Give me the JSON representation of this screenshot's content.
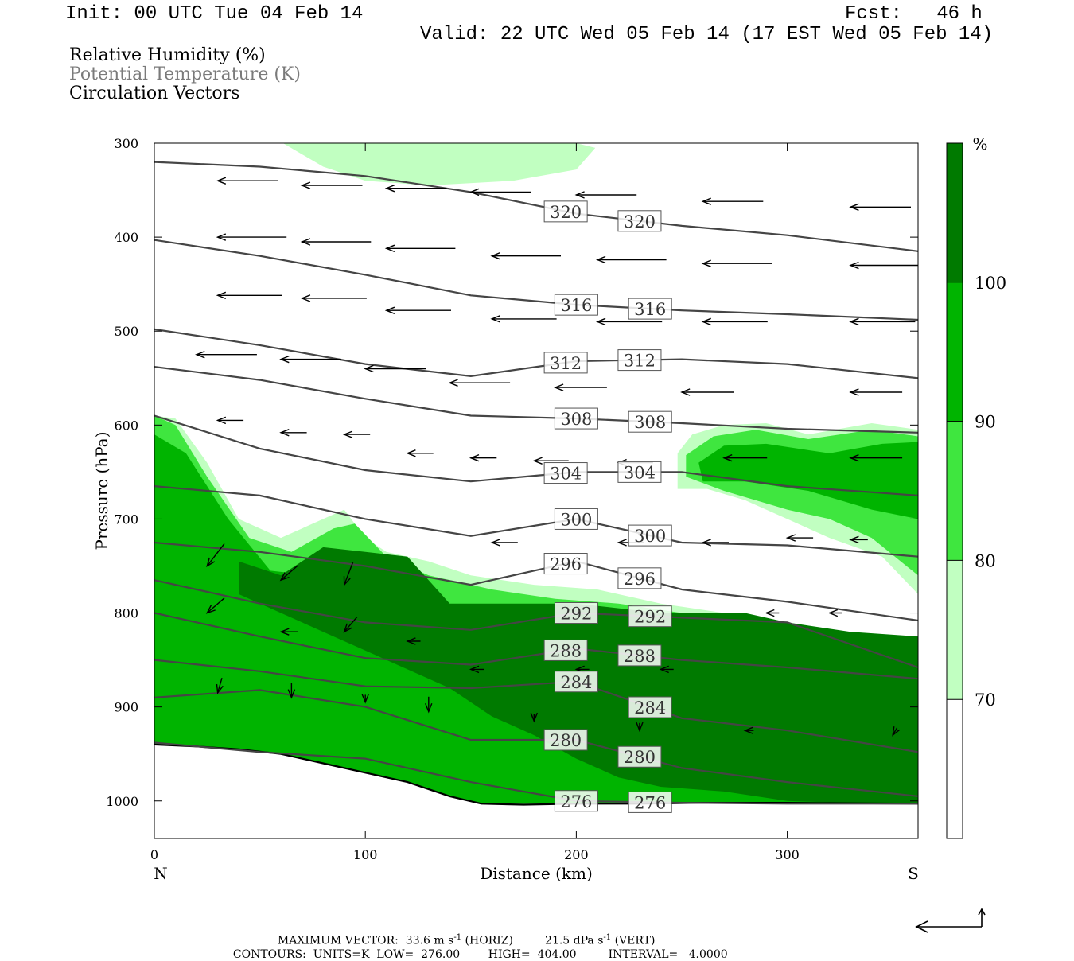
{
  "header": {
    "init": "Init: 00 UTC Tue 04 Feb 14",
    "fcst": "Fcst:   46 h",
    "valid": "Valid: 22 UTC Wed 05 Feb 14 (17 EST Wed 05 Feb 14)"
  },
  "legend": {
    "items": [
      "Relative Humidity (%)",
      "Potential Temperature (K)",
      "Circulation Vectors"
    ]
  },
  "colors": {
    "rh_70_80": "#c1ffc1",
    "rh_80_90": "#3fe63f",
    "rh_90_100": "#00b400",
    "rh_100": "#007a00",
    "theta_line": "#454545",
    "legend_secondary": "#7a7a7a"
  },
  "chart_data": {
    "type": "cross-section",
    "xlabel": "Distance (km)",
    "ylabel": "Pressure (hPa)",
    "xlim": [
      0,
      362
    ],
    "ylim": [
      1040,
      300
    ],
    "y_log_scale": false,
    "x_ticks": [
      0,
      100,
      200,
      300
    ],
    "y_ticks": [
      300,
      400,
      500,
      600,
      700,
      800,
      900,
      1000
    ],
    "x_end_labels": {
      "left": "N",
      "right": "S"
    },
    "colorbar": {
      "unit": "%",
      "levels": [
        70,
        80,
        90,
        100
      ],
      "labels": [
        "70",
        "80",
        "90",
        "100"
      ]
    },
    "theta_contours": [
      {
        "label": "320",
        "x": [
          0,
          50,
          100,
          150,
          200,
          250,
          300,
          362
        ],
        "p": [
          320,
          325,
          335,
          352,
          375,
          388,
          398,
          415
        ]
      },
      {
        "label": "316",
        "x": [
          0,
          50,
          100,
          150,
          200,
          250,
          300,
          362
        ],
        "p": [
          403,
          420,
          440,
          462,
          472,
          478,
          482,
          488
        ]
      },
      {
        "label": "312",
        "x": [
          0,
          50,
          100,
          150,
          200,
          250,
          300,
          362
        ],
        "p": [
          498,
          515,
          535,
          548,
          532,
          530,
          535,
          550
        ]
      },
      {
        "label": "308",
        "x": [
          0,
          50,
          100,
          150,
          200,
          250,
          300,
          362
        ],
        "p": [
          538,
          552,
          572,
          590,
          593,
          598,
          604,
          608
        ]
      },
      {
        "label": "304",
        "x": [
          0,
          50,
          100,
          150,
          200,
          250,
          300,
          362
        ],
        "p": [
          590,
          625,
          648,
          660,
          650,
          650,
          665,
          675
        ]
      },
      {
        "label": "300",
        "x": [
          0,
          50,
          100,
          150,
          200,
          250,
          300,
          362
        ],
        "p": [
          665,
          675,
          700,
          718,
          700,
          725,
          728,
          740
        ]
      },
      {
        "label": "296",
        "x": [
          0,
          50,
          100,
          150,
          200,
          250,
          300,
          362
        ],
        "p": [
          725,
          735,
          750,
          770,
          745,
          775,
          788,
          808
        ]
      },
      {
        "label": "292",
        "x": [
          0,
          50,
          100,
          150,
          200,
          250,
          300,
          362
        ],
        "p": [
          765,
          790,
          810,
          818,
          800,
          805,
          810,
          858
        ]
      },
      {
        "label": "288",
        "x": [
          0,
          50,
          100,
          150,
          200,
          250,
          300,
          362
        ],
        "p": [
          800,
          825,
          848,
          855,
          838,
          850,
          858,
          870
        ]
      },
      {
        "label": "284",
        "x": [
          0,
          50,
          100,
          150,
          200,
          250,
          300,
          362
        ],
        "p": [
          850,
          862,
          878,
          880,
          873,
          912,
          925,
          948
        ]
      },
      {
        "label": "280",
        "x": [
          0,
          50,
          100,
          150,
          200,
          250,
          300,
          362
        ],
        "p": [
          890,
          882,
          900,
          935,
          935,
          965,
          980,
          995
        ]
      },
      {
        "label": "276",
        "x": [
          0,
          50,
          100,
          150,
          200,
          250,
          300,
          362
        ],
        "p": [
          938,
          948,
          955,
          980,
          1000,
          1002,
          1003,
          1003
        ]
      }
    ],
    "terrain": {
      "x": [
        0,
        20,
        40,
        60,
        80,
        100,
        120,
        140,
        155,
        175,
        200,
        230,
        260,
        300,
        362
      ],
      "p": [
        940,
        942,
        945,
        950,
        960,
        970,
        980,
        995,
        1003,
        1004,
        1003,
        1003,
        1002,
        1002,
        1003
      ]
    },
    "rh_regions": [
      {
        "level": 70,
        "x": [
          61,
          75,
          85,
          100,
          110,
          130,
          145,
          165,
          185,
          200,
          209,
          200,
          170,
          130,
          100,
          80
        ],
        "p": [
          300,
          300,
          300,
          300,
          300,
          300,
          300,
          300,
          300,
          300,
          305,
          328,
          340,
          345,
          340,
          325
        ]
      },
      {
        "level": 70,
        "x": [
          0,
          10,
          25,
          40,
          60,
          80,
          90,
          100,
          110,
          130,
          150,
          180,
          210,
          240,
          270,
          300,
          340,
          362,
          362,
          0
        ],
        "p": [
          590,
          593,
          640,
          700,
          720,
          700,
          690,
          720,
          735,
          745,
          760,
          770,
          775,
          790,
          800,
          810,
          825,
          830,
          1003,
          1003
        ]
      },
      {
        "level": 70,
        "x": [
          248,
          255,
          270,
          290,
          310,
          340,
          362,
          362,
          345,
          320,
          300,
          280,
          262,
          248
        ],
        "p": [
          630,
          610,
          600,
          598,
          610,
          598,
          605,
          780,
          740,
          720,
          700,
          680,
          668,
          668
        ]
      },
      {
        "level": 80,
        "x": [
          0,
          10,
          25,
          45,
          65,
          85,
          95,
          110,
          130,
          160,
          190,
          220,
          250,
          280,
          310,
          340,
          362,
          362,
          0
        ],
        "p": [
          590,
          600,
          655,
          720,
          735,
          710,
          705,
          740,
          760,
          775,
          785,
          790,
          800,
          810,
          820,
          835,
          840,
          1003,
          1003
        ]
      },
      {
        "level": 80,
        "x": [
          252,
          265,
          285,
          310,
          340,
          362,
          362,
          340,
          320,
          300,
          270,
          252
        ],
        "p": [
          632,
          612,
          605,
          615,
          605,
          612,
          760,
          720,
          700,
          690,
          670,
          655
        ]
      },
      {
        "level": 90,
        "x": [
          0,
          15,
          35,
          55,
          75,
          95,
          115,
          130,
          160,
          190,
          220,
          250,
          280,
          310,
          340,
          362,
          362,
          0
        ],
        "p": [
          610,
          630,
          700,
          755,
          760,
          740,
          770,
          790,
          800,
          808,
          812,
          818,
          825,
          830,
          845,
          850,
          1003,
          1003
        ]
      },
      {
        "level": 90,
        "x": [
          258,
          270,
          290,
          320,
          345,
          362,
          362,
          340,
          310,
          280,
          260
        ],
        "p": [
          640,
          622,
          620,
          630,
          620,
          618,
          700,
          690,
          670,
          660,
          660
        ]
      },
      {
        "level": 100,
        "x": [
          40,
          60,
          80,
          100,
          120,
          140,
          160,
          180,
          200,
          220,
          240,
          260,
          280,
          300,
          330,
          362,
          362,
          340,
          300,
          270,
          240,
          220,
          200,
          180,
          160,
          140,
          120,
          100,
          80,
          60,
          40
        ],
        "p": [
          745,
          760,
          730,
          735,
          740,
          790,
          790,
          790,
          790,
          795,
          800,
          800,
          800,
          810,
          820,
          825,
          1003,
          1003,
          1000,
          990,
          985,
          975,
          955,
          930,
          910,
          880,
          860,
          840,
          820,
          800,
          780
        ]
      }
    ],
    "vector_scale": {
      "max_horiz": 33.6,
      "max_horiz_unit": "m s-1",
      "max_vert": 21.5,
      "max_vert_unit": "dPa s-1"
    },
    "vectors": [
      {
        "x": 30,
        "p": 340,
        "u": -14,
        "w": 0.0
      },
      {
        "x": 70,
        "p": 345,
        "u": -14,
        "w": 0.0
      },
      {
        "x": 110,
        "p": 348,
        "u": -14,
        "w": 0.0
      },
      {
        "x": 150,
        "p": 352,
        "u": -14,
        "w": 0.0
      },
      {
        "x": 200,
        "p": 355,
        "u": -14,
        "w": 0.0
      },
      {
        "x": 260,
        "p": 362,
        "u": -14,
        "w": 0.0
      },
      {
        "x": 330,
        "p": 368,
        "u": -14,
        "w": 0.0
      },
      {
        "x": 30,
        "p": 400,
        "u": -16,
        "w": 0.0
      },
      {
        "x": 70,
        "p": 405,
        "u": -16,
        "w": 0.0
      },
      {
        "x": 110,
        "p": 412,
        "u": -16,
        "w": 0.0
      },
      {
        "x": 160,
        "p": 420,
        "u": -16,
        "w": 0.0
      },
      {
        "x": 210,
        "p": 424,
        "u": -16,
        "w": 0.0
      },
      {
        "x": 260,
        "p": 428,
        "u": -16,
        "w": 0.0
      },
      {
        "x": 330,
        "p": 430,
        "u": -16,
        "w": 0.0
      },
      {
        "x": 30,
        "p": 462,
        "u": -15,
        "w": 0.0
      },
      {
        "x": 70,
        "p": 465,
        "u": -15,
        "w": 0.0
      },
      {
        "x": 110,
        "p": 478,
        "u": -15,
        "w": 0.0
      },
      {
        "x": 160,
        "p": 487,
        "u": -15,
        "w": 0.0
      },
      {
        "x": 210,
        "p": 490,
        "u": -15,
        "w": 0.0
      },
      {
        "x": 260,
        "p": 490,
        "u": -15,
        "w": 0.0
      },
      {
        "x": 330,
        "p": 490,
        "u": -15,
        "w": 0.0
      },
      {
        "x": 20,
        "p": 525,
        "u": -14,
        "w": 0.0
      },
      {
        "x": 60,
        "p": 530,
        "u": -14,
        "w": 0.0
      },
      {
        "x": 100,
        "p": 540,
        "u": -14,
        "w": 0.0
      },
      {
        "x": 140,
        "p": 555,
        "u": -14,
        "w": 0.0
      },
      {
        "x": 190,
        "p": 560,
        "u": -12,
        "w": 0.0
      },
      {
        "x": 250,
        "p": 565,
        "u": -12,
        "w": 0.0
      },
      {
        "x": 330,
        "p": 565,
        "u": -12,
        "w": 0.0
      },
      {
        "x": 30,
        "p": 595,
        "u": -6,
        "w": 0.0
      },
      {
        "x": 60,
        "p": 608,
        "u": -6,
        "w": 0.0
      },
      {
        "x": 90,
        "p": 610,
        "u": -6,
        "w": 0.0
      },
      {
        "x": 120,
        "p": 630,
        "u": -6,
        "w": 0.0
      },
      {
        "x": 150,
        "p": 635,
        "u": -6,
        "w": 0.0
      },
      {
        "x": 180,
        "p": 638,
        "u": -8,
        "w": 0.0
      },
      {
        "x": 220,
        "p": 640,
        "u": -8,
        "w": 0.0
      },
      {
        "x": 270,
        "p": 635,
        "u": -10,
        "w": 0.0
      },
      {
        "x": 330,
        "p": 635,
        "u": -12,
        "w": 0.0
      },
      {
        "x": 160,
        "p": 725,
        "u": -6,
        "w": 0.0
      },
      {
        "x": 220,
        "p": 725,
        "u": -6,
        "w": 0.0
      },
      {
        "x": 260,
        "p": 725,
        "u": -6,
        "w": 0.0
      },
      {
        "x": 300,
        "p": 720,
        "u": -6,
        "w": 0.0
      },
      {
        "x": 330,
        "p": 722,
        "u": -4,
        "w": 0.0
      },
      {
        "x": 25,
        "p": 750,
        "u": -4,
        "w": -3.0
      },
      {
        "x": 60,
        "p": 765,
        "u": -4,
        "w": -2.0
      },
      {
        "x": 90,
        "p": 770,
        "u": -2,
        "w": -3.0
      },
      {
        "x": 25,
        "p": 800,
        "u": -4,
        "w": -2.0
      },
      {
        "x": 60,
        "p": 820,
        "u": -4,
        "w": 0.0
      },
      {
        "x": 90,
        "p": 820,
        "u": -3,
        "w": -2.0
      },
      {
        "x": 120,
        "p": 830,
        "u": -3,
        "w": 0.0
      },
      {
        "x": 150,
        "p": 860,
        "u": -3,
        "w": 0.0
      },
      {
        "x": 200,
        "p": 860,
        "u": -3,
        "w": 0.0
      },
      {
        "x": 240,
        "p": 860,
        "u": -3,
        "w": 0.0
      },
      {
        "x": 290,
        "p": 800,
        "u": -3,
        "w": 0.0
      },
      {
        "x": 320,
        "p": 800,
        "u": -3,
        "w": 0.0
      },
      {
        "x": 30,
        "p": 885,
        "u": -1,
        "w": -2.0
      },
      {
        "x": 65,
        "p": 890,
        "u": 0,
        "w": -2.0
      },
      {
        "x": 100,
        "p": 895,
        "u": 0,
        "w": -1.0
      },
      {
        "x": 130,
        "p": 905,
        "u": 0,
        "w": -2.0
      },
      {
        "x": 180,
        "p": 915,
        "u": 0,
        "w": -1.0
      },
      {
        "x": 230,
        "p": 925,
        "u": 0,
        "w": -1.0
      },
      {
        "x": 280,
        "p": 925,
        "u": -2,
        "w": 0.0
      },
      {
        "x": 350,
        "p": 930,
        "u": -1,
        "w": -1.0
      }
    ],
    "footer": {
      "max_vector_label": "MAXIMUM VECTOR:",
      "horiz_value": "33.6 m s",
      "horiz_exp": "-1",
      "horiz_tag": "(HORIZ)",
      "vert_value": "21.5 dPa s",
      "vert_exp": "-1",
      "vert_tag": "(VERT)",
      "contours_label": "CONTOURS:",
      "units": "UNITS=K",
      "low_label": "LOW=",
      "low_value": "276.00",
      "high_label": "HIGH=",
      "high_value": "404.00",
      "interval_label": "INTERVAL=",
      "interval_value": "4.0000"
    }
  }
}
